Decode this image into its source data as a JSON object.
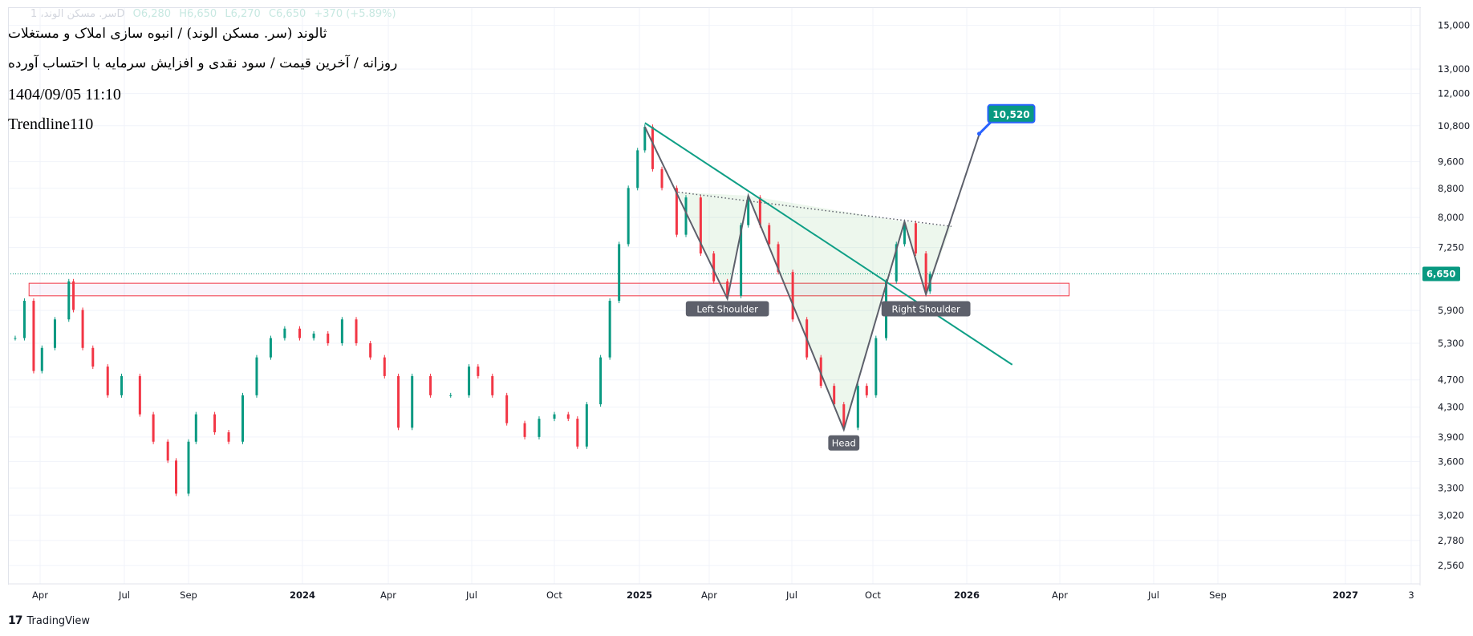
{
  "legend": {
    "symbol": "سر. مسکن الوند، 1D",
    "open": "O6,280",
    "high": "H6,650",
    "low": "L6,270",
    "close": "C6,650",
    "change": "+370 (+5.89%)"
  },
  "titles": {
    "line1": "ثالوند (سر. مسکن الوند) / انبوه سازی املاک و مستغلات",
    "line2": "روزانه / آخرین قیمت / سود نقدی و افزایش سرمایه با احتساب آورده",
    "datetime": "1404/09/05 11:10",
    "author": "Trendline110"
  },
  "branding": {
    "name": "TradingView"
  },
  "colors": {
    "up": "#089981",
    "down": "#f23645",
    "pattern": "#5d606b",
    "trendline": "#0f9f86",
    "zone": "#f23645",
    "target_label": "#089981",
    "target_border": "#2962ff"
  },
  "chart_data": {
    "type": "candlestick",
    "scale": "log",
    "ylim": [
      2450,
      15600
    ],
    "yticks": [
      15000,
      13000,
      12000,
      10800,
      9600,
      8800,
      8000,
      7250,
      5900,
      5300,
      4700,
      4300,
      3900,
      3600,
      3300,
      3020,
      2780,
      2560
    ],
    "ytick_labels": [
      "15,000",
      "13,000",
      "12,000",
      "10,800",
      "9,600",
      "8,800",
      "8,000",
      "7,250",
      "5,900",
      "5,300",
      "4,700",
      "4,300",
      "3,900",
      "3,600",
      "3,300",
      "3,020",
      "2,780",
      "2,560"
    ],
    "xticks": [
      {
        "date": "2023-04-01",
        "label": "Apr",
        "bold": false
      },
      {
        "date": "2023-07-01",
        "label": "Jul",
        "bold": false
      },
      {
        "date": "2023-09-01",
        "label": "Sep",
        "bold": false
      },
      {
        "date": "2024-01-01",
        "label": "2024",
        "bold": true
      },
      {
        "date": "2024-04-01",
        "label": "Apr",
        "bold": false
      },
      {
        "date": "2024-07-01",
        "label": "Jul",
        "bold": false
      },
      {
        "date": "2024-10-01",
        "label": "Oct",
        "bold": false
      },
      {
        "date": "2025-01-01",
        "label": "2025",
        "bold": true
      },
      {
        "date": "2025-04-01",
        "label": "Apr",
        "bold": false
      },
      {
        "date": "2025-07-01",
        "label": "Jul",
        "bold": false
      },
      {
        "date": "2025-10-01",
        "label": "Oct",
        "bold": false
      },
      {
        "date": "2026-01-01",
        "label": "2026",
        "bold": true
      },
      {
        "date": "2026-04-01",
        "label": "Apr",
        "bold": false
      },
      {
        "date": "2026-07-01",
        "label": "Jul",
        "bold": false
      },
      {
        "date": "2026-09-01",
        "label": "Sep",
        "bold": false
      },
      {
        "date": "2027-01-01",
        "label": "2027",
        "bold": true
      },
      {
        "date": "2027-03-01",
        "label": "3",
        "bold": false
      }
    ],
    "last_price": {
      "value": 6650,
      "label": "6,650"
    },
    "closes": [
      [
        "2023-03-05",
        5390
      ],
      [
        "2023-03-15",
        6090
      ],
      [
        "2023-03-25",
        4840
      ],
      [
        "2023-04-03",
        5220
      ],
      [
        "2023-04-17",
        5730
      ],
      [
        "2023-05-02",
        6490
      ],
      [
        "2023-05-07",
        5910
      ],
      [
        "2023-05-17",
        5220
      ],
      [
        "2023-05-28",
        4910
      ],
      [
        "2023-06-13",
        4470
      ],
      [
        "2023-06-28",
        4760
      ],
      [
        "2023-07-16",
        4200
      ],
      [
        "2023-07-29",
        3840
      ],
      [
        "2023-08-12",
        3610
      ],
      [
        "2023-08-20",
        3240
      ],
      [
        "2023-09-01",
        3840
      ],
      [
        "2023-09-09",
        4200
      ],
      [
        "2023-09-29",
        3960
      ],
      [
        "2023-10-14",
        3840
      ],
      [
        "2023-10-29",
        4470
      ],
      [
        "2023-11-13",
        5060
      ],
      [
        "2023-11-28",
        5390
      ],
      [
        "2023-12-13",
        5560
      ],
      [
        "2023-12-29",
        5390
      ],
      [
        "2024-01-13",
        5470
      ],
      [
        "2024-01-28",
        5300
      ],
      [
        "2024-02-12",
        5730
      ],
      [
        "2024-02-27",
        5300
      ],
      [
        "2024-03-13",
        5060
      ],
      [
        "2024-03-28",
        4760
      ],
      [
        "2024-04-12",
        4020
      ],
      [
        "2024-04-27",
        4760
      ],
      [
        "2024-05-17",
        4470
      ],
      [
        "2024-06-08",
        4470
      ],
      [
        "2024-06-28",
        4910
      ],
      [
        "2024-07-08",
        4760
      ],
      [
        "2024-07-24",
        4470
      ],
      [
        "2024-08-09",
        4080
      ],
      [
        "2024-08-29",
        3900
      ],
      [
        "2024-09-14",
        4140
      ],
      [
        "2024-10-01",
        4200
      ],
      [
        "2024-10-16",
        4140
      ],
      [
        "2024-10-26",
        3780
      ],
      [
        "2024-11-05",
        4340
      ],
      [
        "2024-11-20",
        5060
      ],
      [
        "2024-11-30",
        6090
      ],
      [
        "2024-12-10",
        7330
      ],
      [
        "2024-12-20",
        8810
      ],
      [
        "2024-12-30",
        9965
      ],
      [
        "2025-01-08",
        10760
      ],
      [
        "2025-01-18",
        9370
      ],
      [
        "2025-01-30",
        8810
      ],
      [
        "2025-02-18",
        7560
      ],
      [
        "2025-03-02",
        8540
      ],
      [
        "2025-03-21",
        7110
      ],
      [
        "2025-04-06",
        6490
      ],
      [
        "2025-04-21",
        6190
      ],
      [
        "2025-05-06",
        7800
      ],
      [
        "2025-05-14",
        8540
      ],
      [
        "2025-05-27",
        7800
      ],
      [
        "2025-06-06",
        7330
      ],
      [
        "2025-06-16",
        6690
      ],
      [
        "2025-07-02",
        5730
      ],
      [
        "2025-07-18",
        5060
      ],
      [
        "2025-08-03",
        4610
      ],
      [
        "2025-08-18",
        4340
      ],
      [
        "2025-08-29",
        4020
      ],
      [
        "2025-09-14",
        4610
      ],
      [
        "2025-09-24",
        4470
      ],
      [
        "2025-10-04",
        5390
      ],
      [
        "2025-10-14",
        6490
      ],
      [
        "2025-10-24",
        7330
      ],
      [
        "2025-11-01",
        7850
      ],
      [
        "2025-11-12",
        7110
      ],
      [
        "2025-11-22",
        6280
      ],
      [
        "2025-11-26",
        6650
      ]
    ],
    "annotations": {
      "support_zone": {
        "from": "2023-03-20",
        "to": "2026-04-10",
        "top": 6450,
        "bottom": 6190
      },
      "trendline": [
        [
          "2025-01-08",
          10900
        ],
        [
          "2026-02-14",
          4940
        ]
      ],
      "neckline_dotted": [
        [
          "2025-02-20",
          8690
        ],
        [
          "2025-12-17",
          7770
        ]
      ],
      "pattern": [
        [
          "2025-01-08",
          10760
        ],
        [
          "2025-04-21",
          6130
        ],
        [
          "2025-05-14",
          8590
        ],
        [
          "2025-08-29",
          3995
        ],
        [
          "2025-11-01",
          7890
        ],
        [
          "2025-11-22",
          6220
        ],
        [
          "2026-01-13",
          10490
        ]
      ],
      "shaded": [
        [
          [
            "2025-02-20",
            8690
          ],
          [
            "2025-04-21",
            6130
          ],
          [
            "2025-05-14",
            8590
          ]
        ],
        [
          [
            "2025-05-14",
            8590
          ],
          [
            "2025-08-29",
            3995
          ],
          [
            "2025-11-01",
            7890
          ]
        ],
        [
          [
            "2025-11-01",
            7890
          ],
          [
            "2025-11-22",
            6220
          ],
          [
            "2025-12-17",
            7770
          ]
        ]
      ],
      "labels": [
        {
          "text": "Left Shoulder",
          "date": "2025-04-21",
          "price": 5940
        },
        {
          "text": "Head",
          "date": "2025-08-29",
          "price": 3830
        },
        {
          "text": "Right Shoulder",
          "date": "2025-11-22",
          "price": 5940
        }
      ],
      "target": {
        "text": "10,520",
        "date": "2026-01-13",
        "price": 10520
      }
    }
  }
}
